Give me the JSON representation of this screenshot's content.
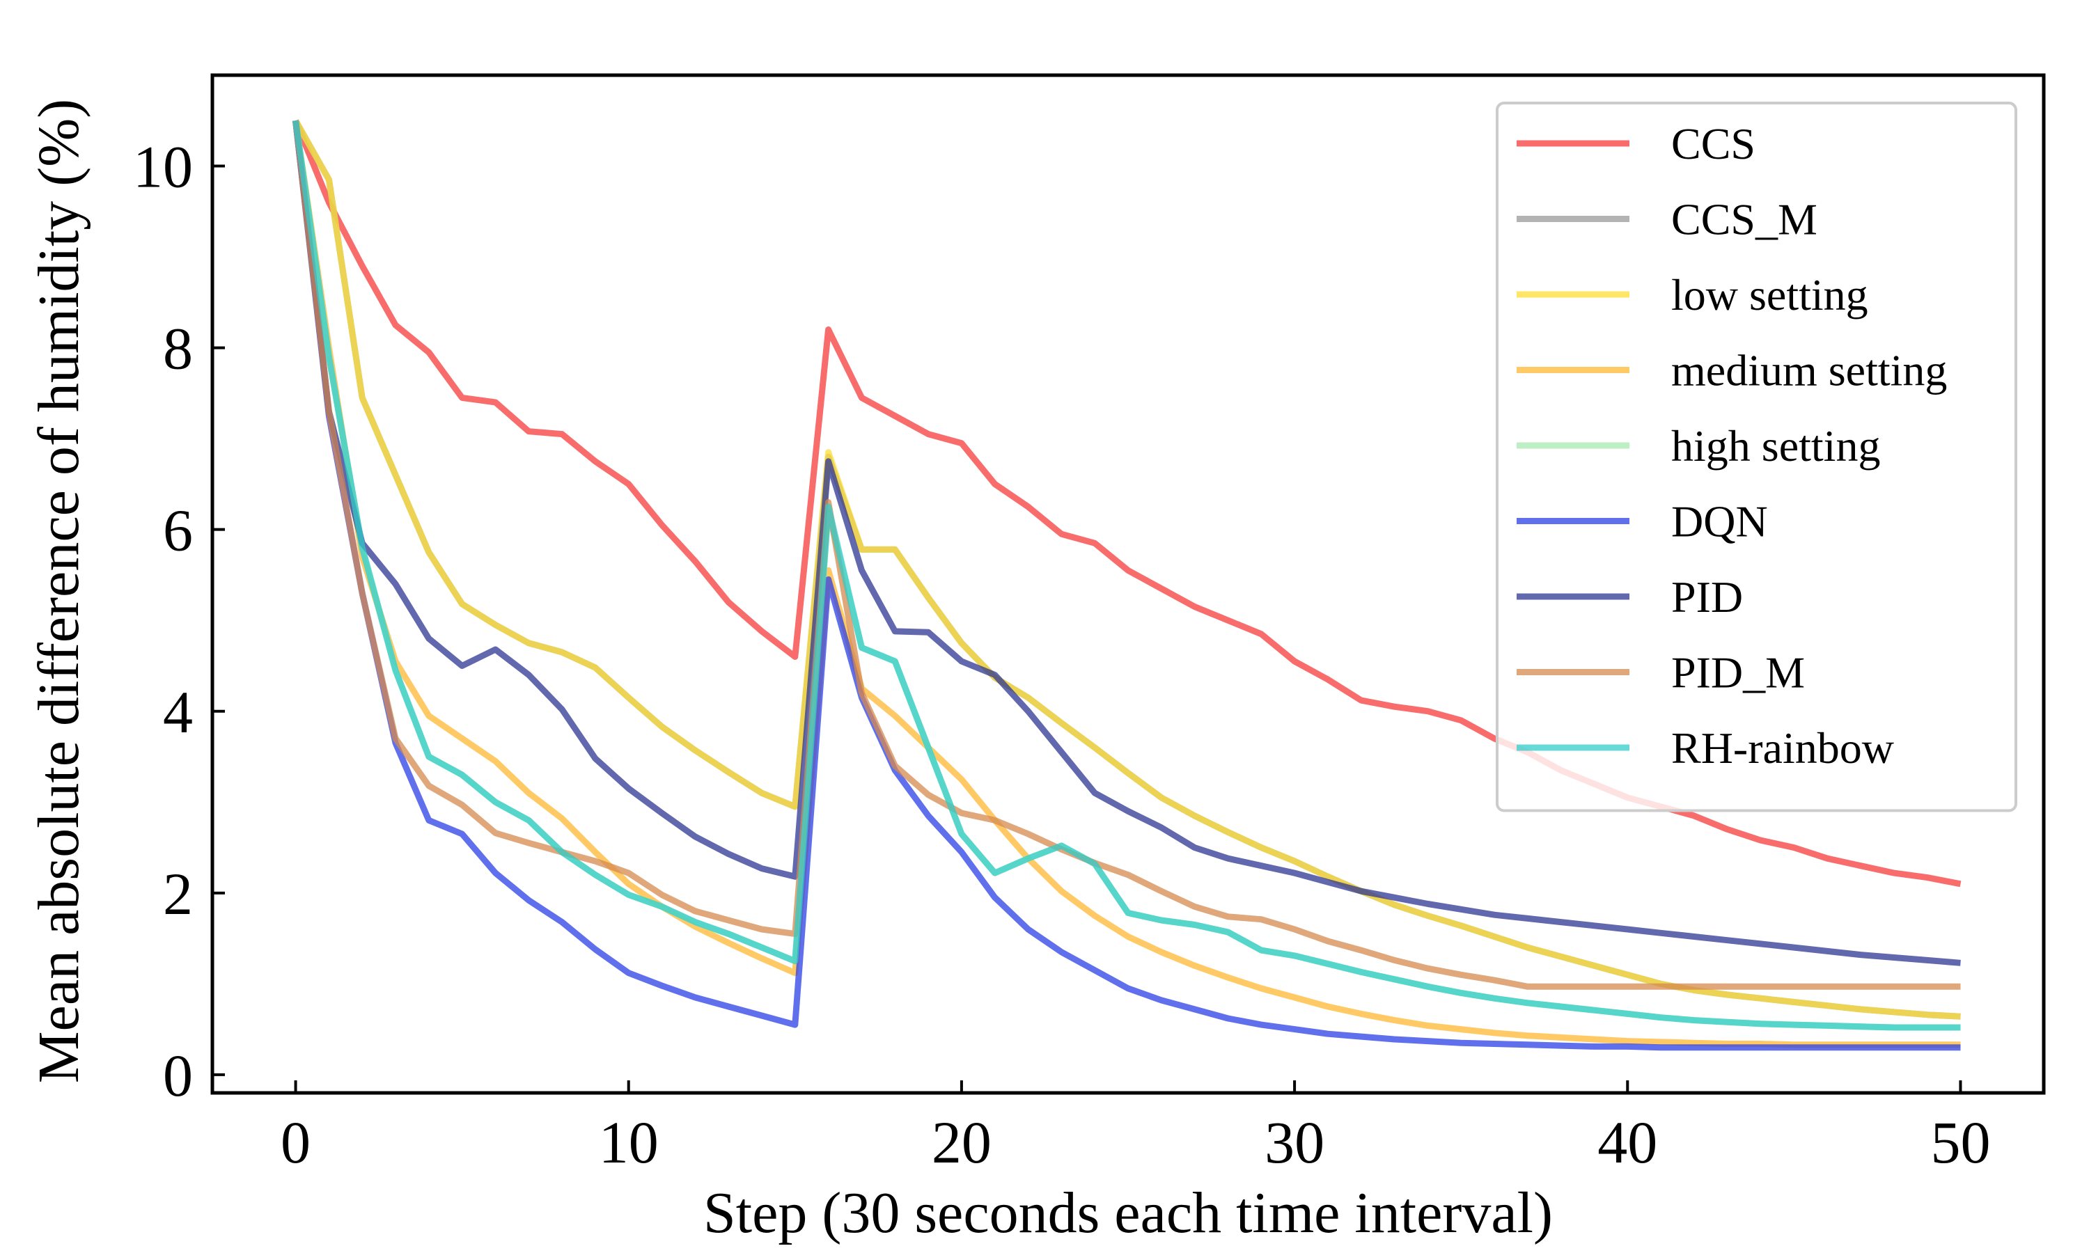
{
  "chart_data": {
    "type": "line",
    "xlabel": "Step (30 seconds each time interval)",
    "ylabel": "Mean absolute difference of humidity (%)",
    "xlim": [
      -2.5,
      52.5
    ],
    "ylim": [
      -0.2,
      11.0
    ],
    "xticks": [
      0,
      10,
      20,
      30,
      40,
      50
    ],
    "yticks": [
      0,
      2,
      4,
      6,
      8,
      10
    ],
    "grid": false,
    "legend": "top-right",
    "x": [
      0,
      1,
      2,
      3,
      4,
      5,
      6,
      7,
      8,
      9,
      10,
      11,
      12,
      13,
      14,
      15,
      16,
      17,
      18,
      19,
      20,
      21,
      22,
      23,
      24,
      25,
      26,
      27,
      28,
      29,
      30,
      31,
      32,
      33,
      34,
      35,
      36,
      37,
      38,
      39,
      40,
      41,
      42,
      43,
      44,
      45,
      46,
      47,
      48,
      49,
      50
    ],
    "series": [
      {
        "name": "CCS",
        "color": "#f63b3b",
        "values": [
          10.5,
          9.6,
          8.9,
          8.25,
          7.95,
          7.45,
          7.4,
          7.08,
          7.05,
          6.75,
          6.5,
          6.05,
          5.65,
          5.2,
          4.88,
          4.6,
          8.2,
          7.45,
          7.25,
          7.05,
          6.95,
          6.5,
          6.25,
          5.95,
          5.85,
          5.55,
          5.35,
          5.15,
          5.0,
          4.85,
          4.55,
          4.35,
          4.12,
          4.05,
          4.0,
          3.9,
          3.7,
          3.55,
          3.35,
          3.2,
          3.05,
          2.95,
          2.85,
          2.7,
          2.58,
          2.5,
          2.38,
          2.3,
          2.22,
          2.17,
          2.1
        ]
      },
      {
        "name": "CCS_M",
        "color": "#999999",
        "values": [
          10.5,
          9.85,
          7.45,
          6.6,
          5.75,
          5.18,
          4.95,
          4.75,
          4.65,
          4.48,
          4.15,
          3.83,
          3.57,
          3.33,
          3.1,
          2.95,
          6.8,
          5.78,
          5.78,
          5.25,
          4.75,
          4.37,
          4.15,
          3.87,
          3.6,
          3.32,
          3.05,
          2.85,
          2.67,
          2.5,
          2.35,
          2.18,
          2.02,
          1.87,
          1.75,
          1.64,
          1.52,
          1.4,
          1.3,
          1.2,
          1.1,
          1.0,
          0.93,
          0.88,
          0.84,
          0.8,
          0.76,
          0.72,
          0.69,
          0.66,
          0.64
        ]
      },
      {
        "name": "low setting",
        "color": "#ffdd33",
        "values": [
          10.5,
          9.85,
          7.45,
          6.6,
          5.75,
          5.18,
          4.95,
          4.75,
          4.65,
          4.48,
          4.15,
          3.83,
          3.57,
          3.33,
          3.1,
          2.95,
          6.85,
          5.78,
          5.78,
          5.25,
          4.75,
          4.37,
          4.15,
          3.87,
          3.6,
          3.32,
          3.05,
          2.85,
          2.67,
          2.5,
          2.35,
          2.18,
          2.02,
          1.87,
          1.75,
          1.64,
          1.52,
          1.4,
          1.3,
          1.2,
          1.1,
          1.0,
          0.93,
          0.88,
          0.84,
          0.8,
          0.76,
          0.72,
          0.69,
          0.66,
          0.64
        ]
      },
      {
        "name": "medium setting",
        "color": "#ffb833",
        "values": [
          10.5,
          8.0,
          5.7,
          4.55,
          3.95,
          3.7,
          3.45,
          3.1,
          2.82,
          2.45,
          2.1,
          1.85,
          1.63,
          1.45,
          1.28,
          1.12,
          5.55,
          4.25,
          3.95,
          3.6,
          3.25,
          2.8,
          2.38,
          2.02,
          1.75,
          1.52,
          1.35,
          1.2,
          1.07,
          0.95,
          0.85,
          0.75,
          0.67,
          0.6,
          0.54,
          0.5,
          0.46,
          0.43,
          0.41,
          0.39,
          0.37,
          0.36,
          0.35,
          0.34,
          0.34,
          0.33,
          0.33,
          0.33,
          0.33,
          0.33,
          0.33
        ]
      },
      {
        "name": "high setting",
        "color": "#a8e8b0",
        "values": [
          10.5,
          7.9,
          5.8,
          4.45,
          3.5,
          3.3,
          3.0,
          2.8,
          2.45,
          2.2,
          1.98,
          1.85,
          1.68,
          1.55,
          1.4,
          1.25,
          6.2,
          4.7,
          4.55,
          3.6,
          2.65,
          2.22,
          2.38,
          2.52,
          2.32,
          1.78,
          1.7,
          1.65,
          1.57,
          1.37,
          1.31,
          1.22,
          1.13,
          1.05,
          0.97,
          0.9,
          0.84,
          0.79,
          0.75,
          0.71,
          0.67,
          0.63,
          0.6,
          0.58,
          0.56,
          0.55,
          0.54,
          0.53,
          0.52,
          0.52,
          0.52
        ]
      },
      {
        "name": "DQN",
        "color": "#2b3fe6",
        "values": [
          10.5,
          7.25,
          5.3,
          3.65,
          2.8,
          2.65,
          2.22,
          1.92,
          1.68,
          1.38,
          1.12,
          0.98,
          0.85,
          0.75,
          0.65,
          0.55,
          5.45,
          4.15,
          3.35,
          2.85,
          2.45,
          1.95,
          1.6,
          1.35,
          1.15,
          0.95,
          0.82,
          0.72,
          0.62,
          0.55,
          0.5,
          0.45,
          0.42,
          0.39,
          0.37,
          0.35,
          0.34,
          0.33,
          0.32,
          0.31,
          0.31,
          0.3,
          0.3,
          0.3,
          0.3,
          0.3,
          0.3,
          0.3,
          0.3,
          0.3,
          0.3
        ]
      },
      {
        "name": "PID",
        "color": "#2e3692",
        "values": [
          10.5,
          7.3,
          5.85,
          5.4,
          4.8,
          4.5,
          4.68,
          4.4,
          4.02,
          3.48,
          3.15,
          2.88,
          2.62,
          2.43,
          2.27,
          2.18,
          6.75,
          5.55,
          4.88,
          4.87,
          4.55,
          4.4,
          4.0,
          3.55,
          3.1,
          2.9,
          2.72,
          2.5,
          2.38,
          2.3,
          2.22,
          2.12,
          2.02,
          1.95,
          1.88,
          1.82,
          1.76,
          1.72,
          1.68,
          1.64,
          1.6,
          1.56,
          1.52,
          1.48,
          1.44,
          1.4,
          1.36,
          1.32,
          1.29,
          1.26,
          1.23
        ]
      },
      {
        "name": "PID_M",
        "color": "#d58a4e",
        "values": [
          10.5,
          7.3,
          5.3,
          3.7,
          3.18,
          2.97,
          2.66,
          2.55,
          2.45,
          2.35,
          2.22,
          1.98,
          1.8,
          1.7,
          1.6,
          1.55,
          6.3,
          4.2,
          3.4,
          3.08,
          2.88,
          2.8,
          2.65,
          2.48,
          2.33,
          2.2,
          2.02,
          1.85,
          1.74,
          1.71,
          1.6,
          1.47,
          1.37,
          1.26,
          1.17,
          1.1,
          1.04,
          0.97,
          0.97,
          0.97,
          0.97,
          0.97,
          0.97,
          0.97,
          0.97,
          0.97,
          0.97,
          0.97,
          0.97,
          0.97,
          0.97
        ]
      },
      {
        "name": "RH-rainbow",
        "color": "#33cccc",
        "values": [
          10.5,
          7.9,
          5.8,
          4.45,
          3.5,
          3.3,
          3.0,
          2.8,
          2.45,
          2.2,
          1.98,
          1.85,
          1.68,
          1.55,
          1.4,
          1.25,
          6.25,
          4.7,
          4.55,
          3.6,
          2.65,
          2.22,
          2.38,
          2.52,
          2.32,
          1.78,
          1.7,
          1.65,
          1.57,
          1.37,
          1.31,
          1.22,
          1.13,
          1.05,
          0.97,
          0.9,
          0.84,
          0.79,
          0.75,
          0.71,
          0.67,
          0.63,
          0.6,
          0.58,
          0.56,
          0.55,
          0.54,
          0.53,
          0.52,
          0.52,
          0.52
        ]
      }
    ]
  }
}
